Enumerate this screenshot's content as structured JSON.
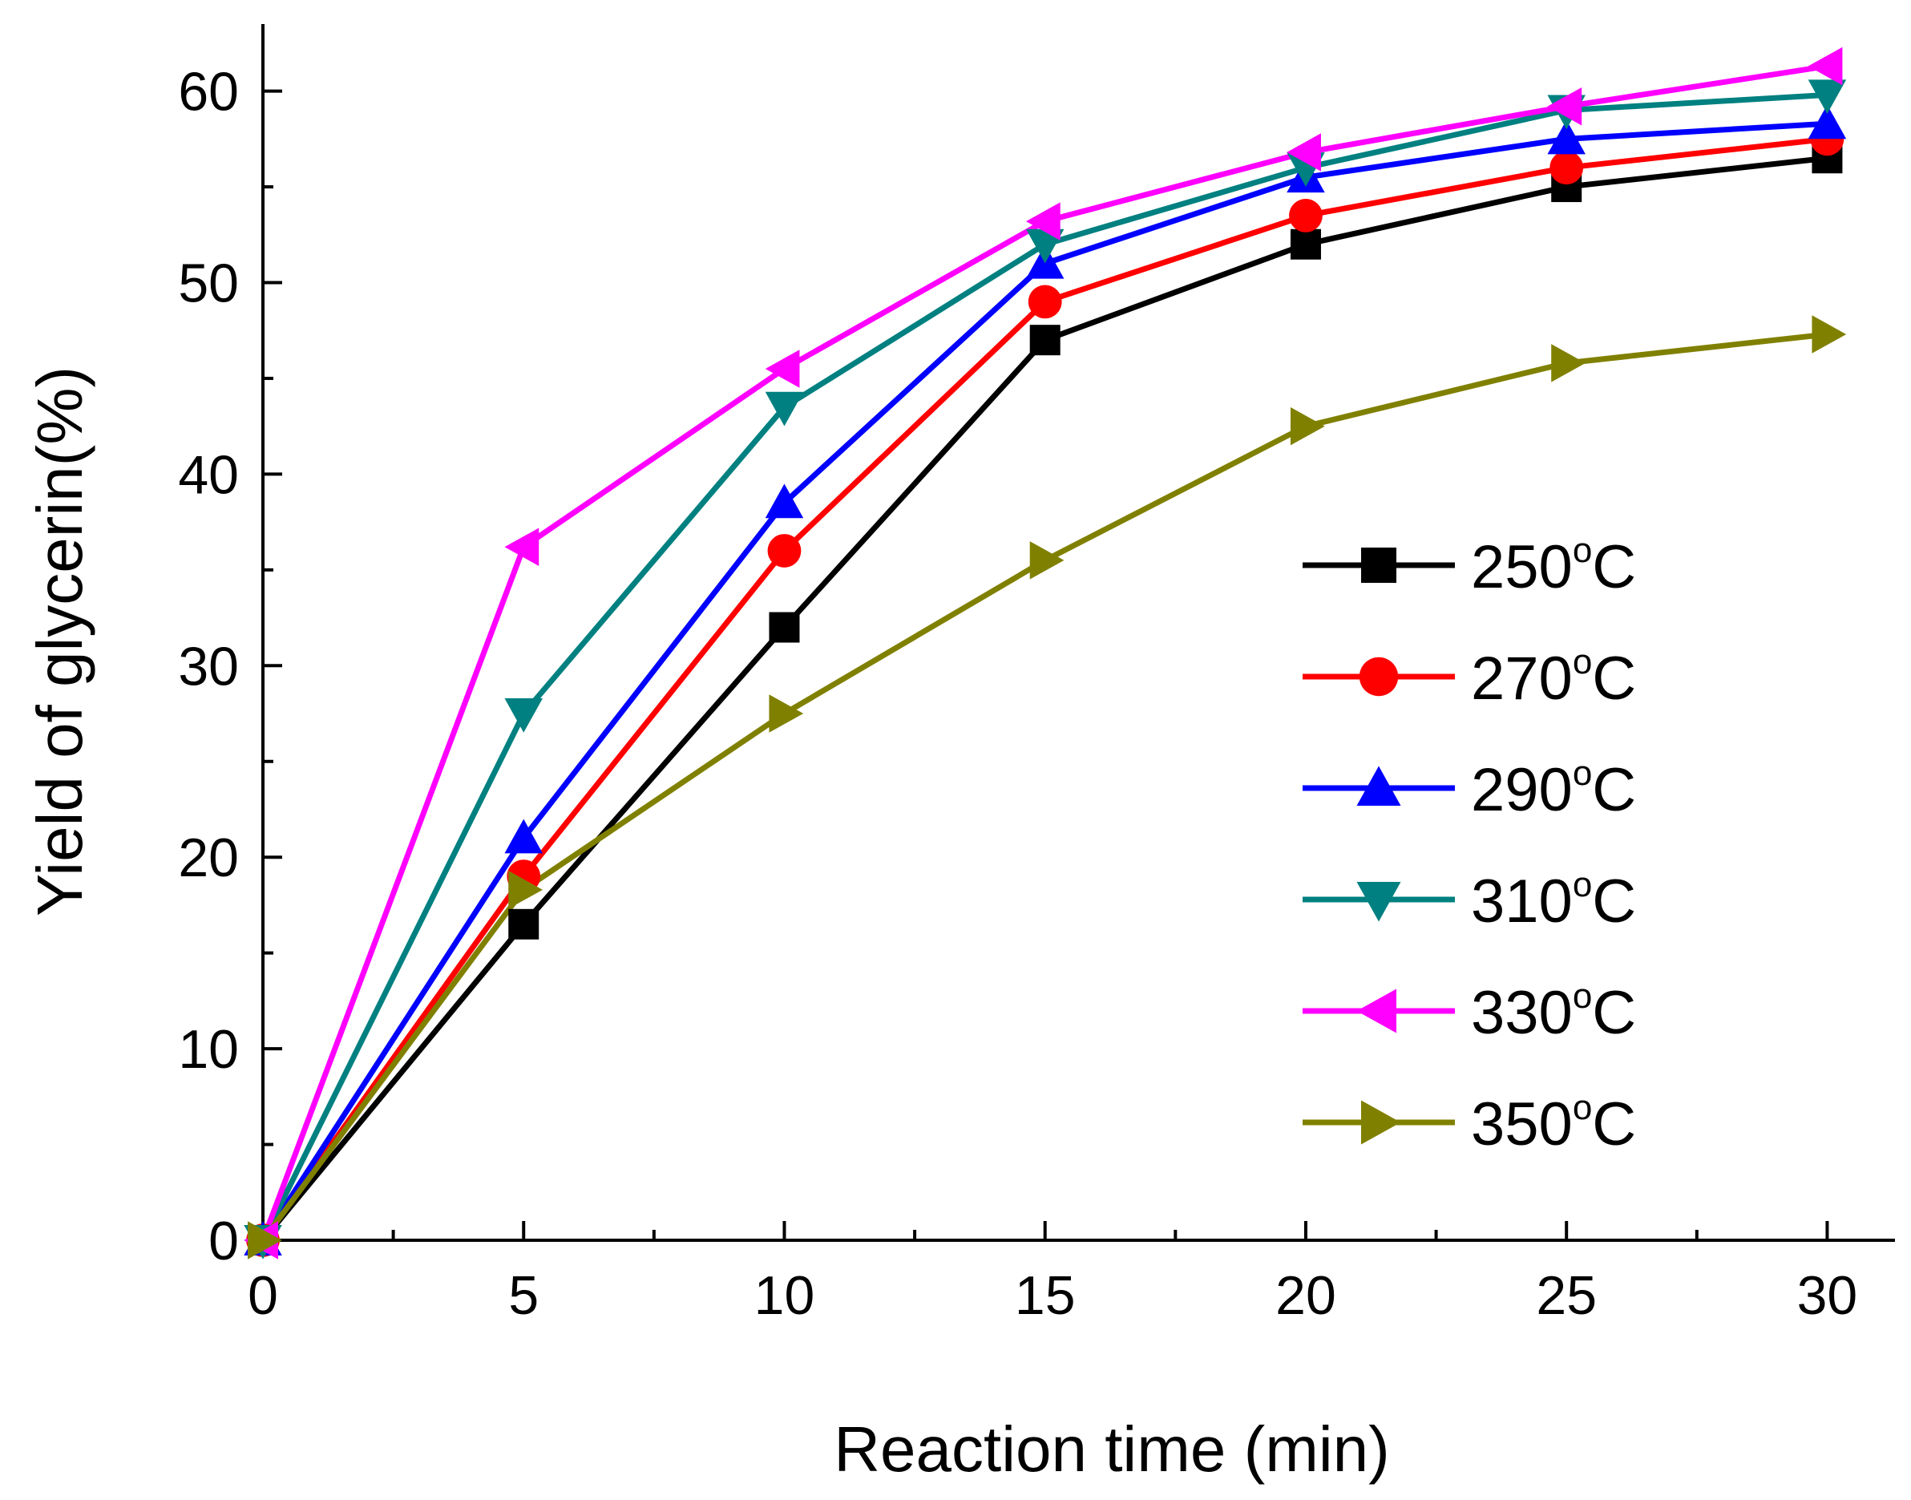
{
  "chart_data": {
    "type": "line",
    "title": "",
    "xlabel": "Reaction time (min)",
    "ylabel": "Yield of glycerin(%)",
    "xlim": [
      0,
      31.3
    ],
    "ylim": [
      0,
      63.5
    ],
    "x": [
      0,
      5,
      10,
      15,
      20,
      25,
      30
    ],
    "x_ticks": [
      0,
      5,
      10,
      15,
      20,
      25,
      30
    ],
    "x_tick_labels": [
      "0",
      "5",
      "10",
      "15",
      "20",
      "25",
      "30"
    ],
    "y_ticks": [
      0,
      10,
      20,
      30,
      40,
      50,
      60
    ],
    "y_tick_labels": [
      "0",
      "10",
      "20",
      "30",
      "40",
      "50",
      "60"
    ],
    "grid": false,
    "legend_position": "right",
    "series": [
      {
        "name": "250",
        "unit_sup": "o",
        "unit": "C",
        "marker": "square",
        "color": "#000000",
        "values": [
          0,
          16.5,
          32,
          47,
          52,
          55,
          56.5
        ]
      },
      {
        "name": "270",
        "unit_sup": "o",
        "unit": "C",
        "marker": "circle",
        "color": "#ff0000",
        "values": [
          0,
          19,
          36,
          49,
          53.5,
          56,
          57.5
        ]
      },
      {
        "name": "290",
        "unit_sup": "o",
        "unit": "C",
        "marker": "triangle-up",
        "color": "#0000ff",
        "values": [
          0,
          21,
          38.5,
          51,
          55.5,
          57.5,
          58.3
        ]
      },
      {
        "name": "310",
        "unit_sup": "o",
        "unit": "C",
        "marker": "triangle-down",
        "color": "#008080",
        "values": [
          0,
          27.5,
          43.5,
          52,
          56,
          59,
          59.8
        ]
      },
      {
        "name": "330",
        "unit_sup": "o",
        "unit": "C",
        "marker": "triangle-left",
        "color": "#ff00ff",
        "values": [
          0,
          36.2,
          45.5,
          53.2,
          56.8,
          59.2,
          61.3
        ]
      },
      {
        "name": "350",
        "unit_sup": "o",
        "unit": "C",
        "marker": "triangle-right",
        "color": "#808000",
        "values": [
          0,
          18.3,
          27.5,
          35.5,
          42.5,
          45.8,
          47.3
        ]
      }
    ]
  }
}
